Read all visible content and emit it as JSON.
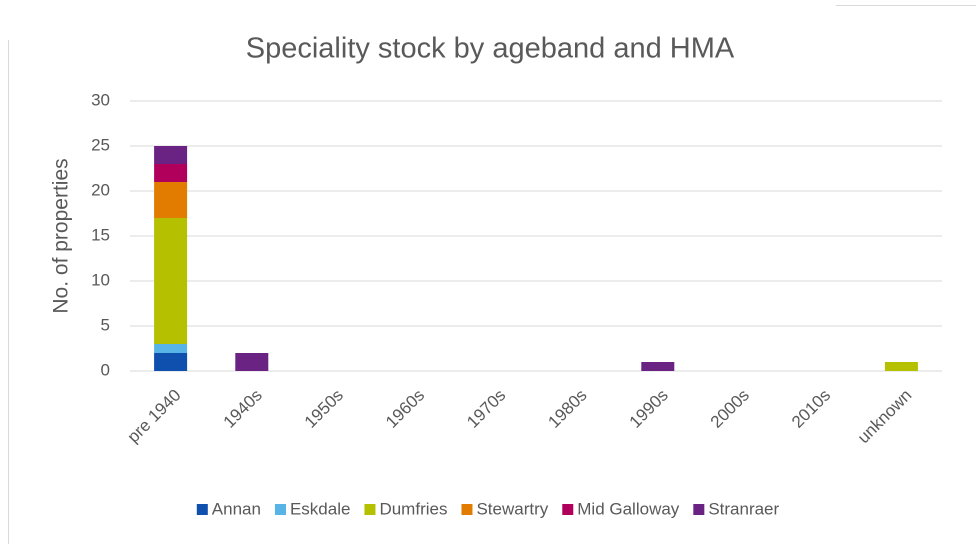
{
  "chart_data": {
    "type": "stacked_bar",
    "title": "Speciality stock by ageband and HMA",
    "ylabel": "No. of properties",
    "categories": [
      "pre 1940",
      "1940s",
      "1950s",
      "1960s",
      "1970s",
      "1980s",
      "1990s",
      "2000s",
      "2010s",
      "unknown"
    ],
    "series": [
      {
        "name": "Annan",
        "color": "#0f4fae",
        "values": [
          2,
          0,
          0,
          0,
          0,
          0,
          0,
          0,
          0,
          0
        ]
      },
      {
        "name": "Eskdale",
        "color": "#58b4e6",
        "values": [
          1,
          0,
          0,
          0,
          0,
          0,
          0,
          0,
          0,
          0
        ]
      },
      {
        "name": "Dumfries",
        "color": "#b4c000",
        "values": [
          14,
          0,
          0,
          0,
          0,
          0,
          0,
          0,
          0,
          1
        ]
      },
      {
        "name": "Stewartry",
        "color": "#e27c00",
        "values": [
          4,
          0,
          0,
          0,
          0,
          0,
          0,
          0,
          0,
          0
        ]
      },
      {
        "name": "Mid Galloway",
        "color": "#b0005b",
        "values": [
          2,
          0,
          0,
          0,
          0,
          0,
          0,
          0,
          0,
          0
        ]
      },
      {
        "name": "Stranraer",
        "color": "#6a2283",
        "values": [
          2,
          2,
          0,
          0,
          0,
          0,
          1,
          0,
          0,
          0
        ]
      }
    ],
    "ylim": [
      0,
      30
    ],
    "yticks": [
      0,
      5,
      10,
      15,
      20,
      25,
      30
    ],
    "grid": true,
    "legend": "bottom"
  }
}
